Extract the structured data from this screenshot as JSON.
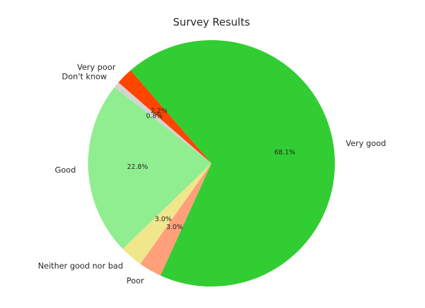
{
  "chart_data": {
    "type": "pie",
    "title": "Survey Results",
    "slices": [
      {
        "label": "Very good",
        "value": 68.1,
        "pct_label": "68.1%",
        "color": "#32cd32"
      },
      {
        "label": "Poor",
        "value": 3.0,
        "pct_label": "3.0%",
        "color": "#ffa07a"
      },
      {
        "label": "Neither good nor bad",
        "value": 3.0,
        "pct_label": "3.0%",
        "color": "#f0e68c"
      },
      {
        "label": "Good",
        "value": 22.8,
        "pct_label": "22.8%",
        "color": "#90ee90"
      },
      {
        "label": "Don't know",
        "value": 0.8,
        "pct_label": "0.8%",
        "color": "#d3d3d3"
      },
      {
        "label": "Very poor",
        "value": 2.2,
        "pct_label": "2.2%",
        "color": "#ff4500"
      }
    ],
    "start_angle_deg": 131,
    "direction": "clockwise"
  }
}
